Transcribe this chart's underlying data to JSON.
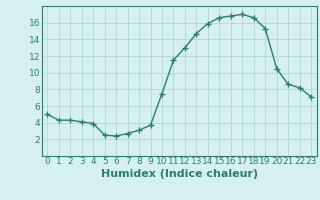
{
  "title": "",
  "xlabel": "Humidex (Indice chaleur)",
  "ylabel": "",
  "x": [
    0,
    1,
    2,
    3,
    4,
    5,
    6,
    7,
    8,
    9,
    10,
    11,
    12,
    13,
    14,
    15,
    16,
    17,
    18,
    19,
    20,
    21,
    22,
    23
  ],
  "y": [
    5.0,
    4.3,
    4.3,
    4.1,
    3.9,
    2.5,
    2.4,
    2.7,
    3.1,
    3.7,
    7.5,
    11.5,
    13.0,
    14.7,
    15.9,
    16.6,
    16.8,
    17.0,
    16.6,
    15.3,
    10.5,
    8.6,
    8.2,
    7.1
  ],
  "line_color": "#2e7d6e",
  "marker": "+",
  "marker_size": 4,
  "bg_color": "#d6f0ef",
  "grid_color": "#b0d8d5",
  "axis_color": "#2e7d6e",
  "ylim": [
    0,
    18
  ],
  "xlim": [
    -0.5,
    23.5
  ],
  "yticks": [
    2,
    4,
    6,
    8,
    10,
    12,
    14,
    16
  ],
  "xticks": [
    0,
    1,
    2,
    3,
    4,
    5,
    6,
    7,
    8,
    9,
    10,
    11,
    12,
    13,
    14,
    15,
    16,
    17,
    18,
    19,
    20,
    21,
    22,
    23
  ],
  "tick_fontsize": 6.5,
  "xlabel_fontsize": 8,
  "line_width": 1.0,
  "markeredgewidth": 1.0
}
